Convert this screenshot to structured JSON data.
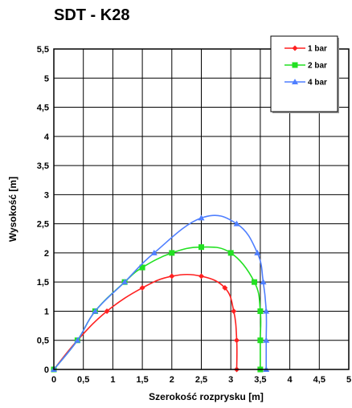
{
  "chart_data": {
    "type": "line",
    "title": "SDT - K28",
    "xlabel": "Szerokość rozprysku [m]",
    "ylabel": "Wysokość [m]",
    "xlim": [
      0,
      5
    ],
    "ylim": [
      0,
      5.5
    ],
    "x_ticks": [
      "0",
      "0,5",
      "1",
      "1,5",
      "2",
      "2,5",
      "3",
      "3,5",
      "4",
      "4,5",
      "5"
    ],
    "y_ticks": [
      "0",
      "0,5",
      "1",
      "1,5",
      "2",
      "2,5",
      "3",
      "3,5",
      "4",
      "4,5",
      "5",
      "5,5"
    ],
    "grid": true,
    "legend_position": "top-right",
    "series": [
      {
        "name": "1 bar",
        "color": "#ff2020",
        "marker": "diamond",
        "points": [
          [
            0,
            0
          ],
          [
            0.4,
            0.5
          ],
          [
            0.9,
            1.0
          ],
          [
            1.5,
            1.4
          ],
          [
            2.0,
            1.6
          ],
          [
            2.5,
            1.6
          ],
          [
            2.9,
            1.4
          ],
          [
            3.05,
            1.0
          ],
          [
            3.1,
            0.5
          ],
          [
            3.1,
            0
          ]
        ]
      },
      {
        "name": "2 bar",
        "color": "#22e022",
        "marker": "square",
        "points": [
          [
            0,
            0
          ],
          [
            0.4,
            0.5
          ],
          [
            0.7,
            1.0
          ],
          [
            1.2,
            1.5
          ],
          [
            1.5,
            1.75
          ],
          [
            2.0,
            2.0
          ],
          [
            2.5,
            2.1
          ],
          [
            3.0,
            2.0
          ],
          [
            3.4,
            1.5
          ],
          [
            3.5,
            1.0
          ],
          [
            3.5,
            0.5
          ],
          [
            3.5,
            0
          ]
        ]
      },
      {
        "name": "4 bar",
        "color": "#4f7fff",
        "marker": "triangle",
        "points": [
          [
            0,
            0
          ],
          [
            0.4,
            0.5
          ],
          [
            0.7,
            1.0
          ],
          [
            1.2,
            1.5
          ],
          [
            1.7,
            2.0
          ],
          [
            2.5,
            2.6
          ],
          [
            3.1,
            2.5
          ],
          [
            3.45,
            2.0
          ],
          [
            3.55,
            1.5
          ],
          [
            3.6,
            1.0
          ],
          [
            3.6,
            0.5
          ],
          [
            3.6,
            0
          ]
        ]
      }
    ]
  }
}
